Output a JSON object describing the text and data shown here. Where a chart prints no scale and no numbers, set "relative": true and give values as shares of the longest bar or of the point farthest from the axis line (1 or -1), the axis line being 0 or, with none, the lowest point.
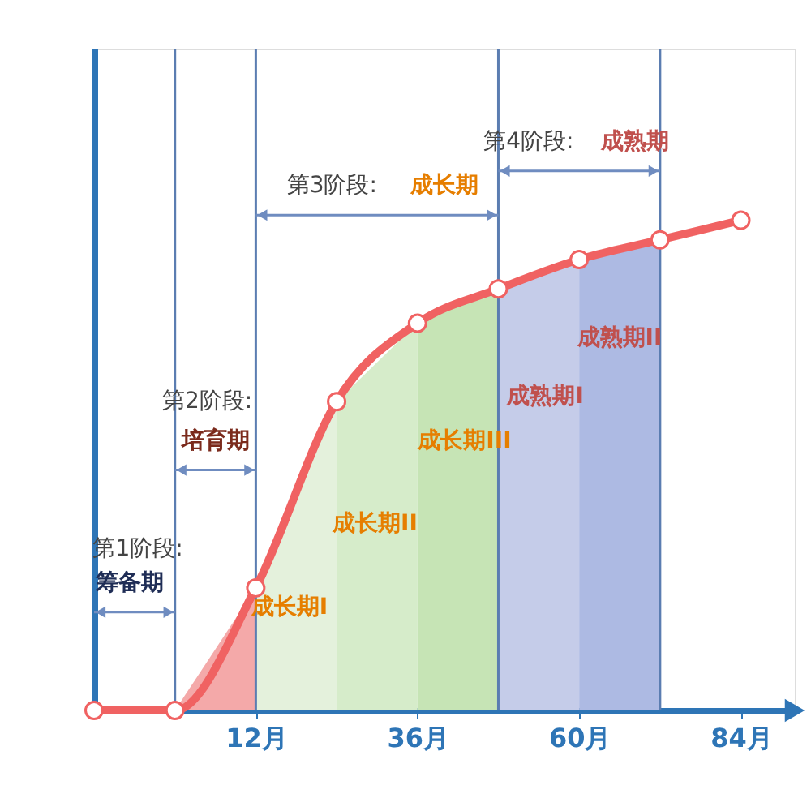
{
  "chart_data": {
    "type": "line",
    "relative": true,
    "xlim": [
      -12,
      92
    ],
    "xticks": [
      {
        "value": 12,
        "label": "12月"
      },
      {
        "value": 36,
        "label": "36月"
      },
      {
        "value": 60,
        "label": "60月"
      },
      {
        "value": 84,
        "label": "84月"
      }
    ],
    "series": [
      {
        "type": "area",
        "color": "#f4a9a9",
        "x": [
          0,
          12
        ],
        "values": [
          0,
          0.25
        ]
      },
      {
        "type": "area",
        "color": "#e4f1dc",
        "x": [
          12,
          24
        ],
        "values": [
          0.25,
          0.63
        ]
      },
      {
        "type": "area",
        "color": "#d6ecca",
        "x": [
          24,
          36
        ],
        "values": [
          0.63,
          0.79
        ]
      },
      {
        "type": "area",
        "color": "#c6e4b5",
        "x": [
          36,
          48
        ],
        "values": [
          0.79,
          0.86
        ]
      },
      {
        "type": "area",
        "color": "#c5cce9",
        "x": [
          48,
          60
        ],
        "values": [
          0.86,
          0.92
        ]
      },
      {
        "type": "area",
        "color": "#adbae3",
        "x": [
          60,
          72
        ],
        "values": [
          0.92,
          0.96
        ]
      },
      {
        "marker": "circle",
        "color": "#f06262",
        "x": [
          -12,
          0,
          12,
          24,
          36,
          48,
          60,
          72,
          84
        ],
        "values": [
          0,
          0,
          0.25,
          0.63,
          0.79,
          0.86,
          0.92,
          0.96,
          1
        ]
      }
    ],
    "ref_lines": [
      {
        "axis": "x",
        "value": 0
      },
      {
        "axis": "x",
        "value": 12
      },
      {
        "axis": "x",
        "value": 48
      },
      {
        "axis": "x",
        "value": 72
      }
    ],
    "annotations": [
      "第1阶段:",
      "筹备期",
      "第2阶段:",
      "培育期",
      "第3阶段:",
      "成长期",
      "第4阶段:",
      "成熟期",
      "成长期I",
      "成长期II",
      "成长期III",
      "成熟期I",
      "成熟期II"
    ]
  }
}
